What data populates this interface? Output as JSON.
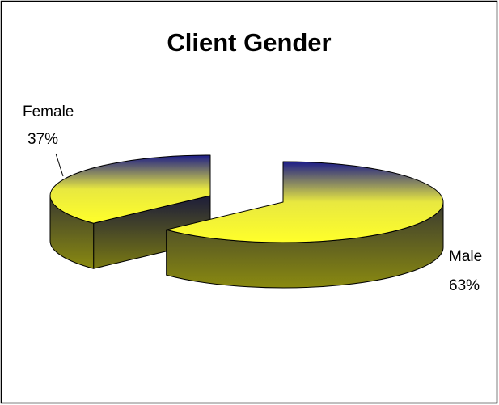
{
  "chart_data": {
    "type": "pie3d",
    "title": "Client Gender",
    "categories": [
      "Male",
      "Female"
    ],
    "values": [
      63,
      37
    ],
    "value_labels": [
      "63%",
      "37%"
    ]
  }
}
